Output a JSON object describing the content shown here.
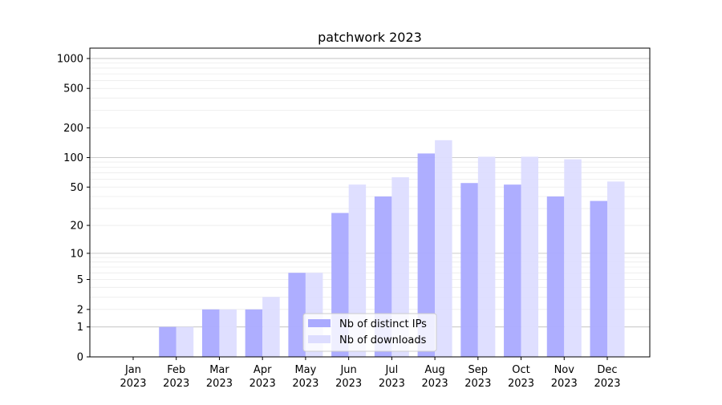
{
  "chart_data": {
    "type": "bar",
    "title": "patchwork 2023",
    "xlabel": "",
    "ylabel": "",
    "yscale": "log(1+y)",
    "ylim": [
      0,
      1300
    ],
    "yticks": [
      0,
      1,
      2,
      5,
      10,
      20,
      50,
      100,
      200,
      500,
      1000
    ],
    "grid": true,
    "legend_position": "bottom-center",
    "categories": [
      "Jan\n2023",
      "Feb\n2023",
      "Mar\n2023",
      "Apr\n2023",
      "May\n2023",
      "Jun\n2023",
      "Jul\n2023",
      "Aug\n2023",
      "Sep\n2023",
      "Oct\n2023",
      "Nov\n2023",
      "Dec\n2023"
    ],
    "series": [
      {
        "name": "Nb of distinct IPs",
        "color": "#aaaaff",
        "values": [
          0,
          1,
          2,
          2,
          6,
          27,
          40,
          110,
          55,
          53,
          40,
          36
        ]
      },
      {
        "name": "Nb of downloads",
        "color": "#ddddff",
        "values": [
          0,
          1,
          2,
          3,
          6,
          53,
          63,
          150,
          102,
          102,
          96,
          57
        ]
      }
    ]
  }
}
